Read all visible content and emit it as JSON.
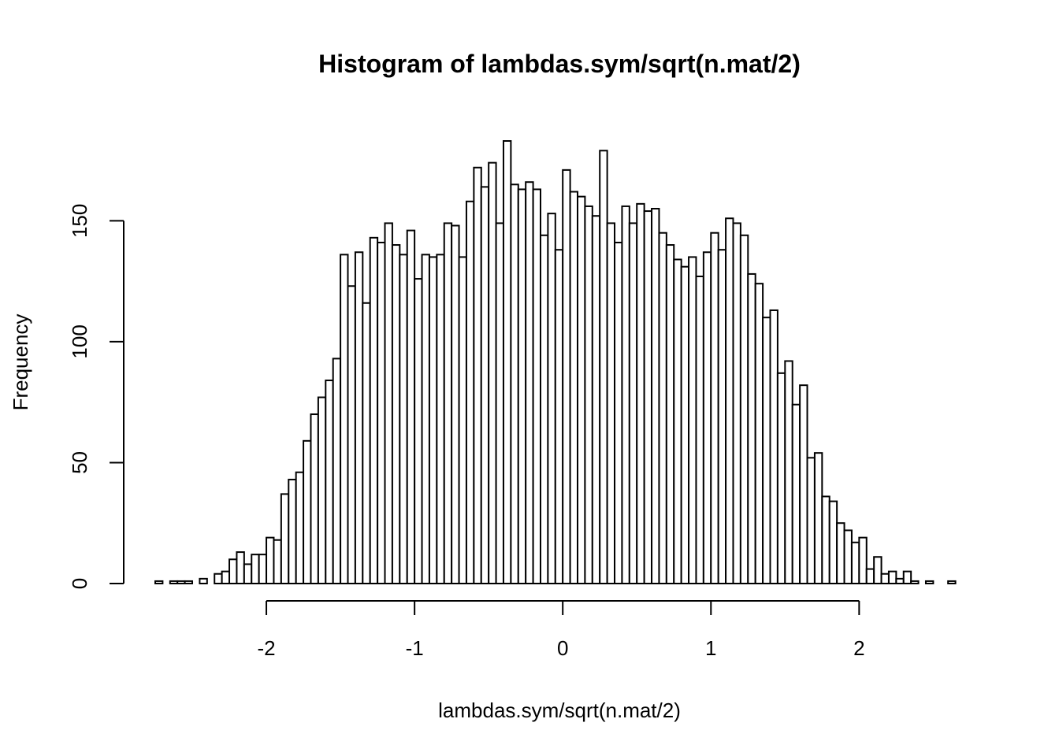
{
  "chart_data": {
    "type": "bar",
    "subtype": "histogram",
    "title": "Histogram of lambdas.sym/sqrt(n.mat/2)",
    "xlabel": "lambdas.sym/sqrt(n.mat/2)",
    "ylabel": "Frequency",
    "bin_start": -2.75,
    "bin_width": 0.05,
    "values": [
      1,
      0,
      1,
      1,
      1,
      0,
      2,
      0,
      4,
      5,
      10,
      13,
      8,
      12,
      12,
      19,
      18,
      37,
      43,
      46,
      59,
      70,
      77,
      84,
      93,
      136,
      123,
      137,
      116,
      143,
      141,
      149,
      140,
      136,
      146,
      126,
      136,
      135,
      136,
      149,
      148,
      135,
      158,
      172,
      164,
      174,
      149,
      183,
      165,
      163,
      166,
      163,
      144,
      153,
      138,
      171,
      162,
      160,
      156,
      152,
      179,
      149,
      141,
      156,
      149,
      157,
      154,
      155,
      145,
      140,
      134,
      131,
      135,
      127,
      137,
      145,
      138,
      151,
      149,
      144,
      128,
      124,
      110,
      113,
      87,
      92,
      74,
      82,
      52,
      54,
      36,
      34,
      25,
      22,
      17,
      19,
      6,
      11,
      4,
      5,
      2,
      5,
      1,
      0,
      1,
      0,
      0,
      1
    ],
    "xlim": [
      -2.75,
      2.7
    ],
    "ylim": [
      0,
      183
    ],
    "x_ticks": [
      -2,
      -1,
      0,
      1,
      2
    ],
    "x_tick_labels": [
      "-2",
      "-1",
      "0",
      "1",
      "2"
    ],
    "y_ticks": [
      0,
      50,
      100,
      150
    ],
    "y_tick_labels": [
      "0",
      "50",
      "100",
      "150"
    ],
    "bar_fill": "#ffffff",
    "bar_stroke": "#000000",
    "grid": false,
    "legend": "none"
  }
}
